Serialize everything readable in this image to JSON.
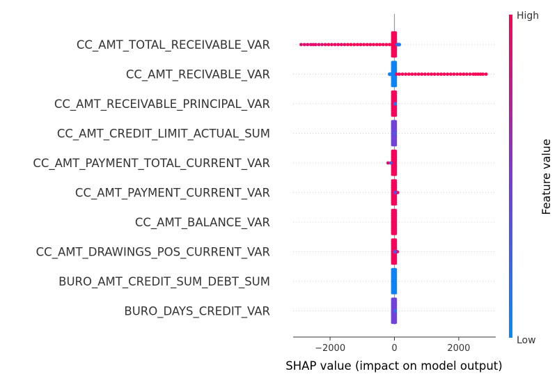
{
  "chart_data": {
    "type": "scatter",
    "subtype": "shap-beeswarm",
    "title": "",
    "xlabel": "SHAP value (impact on model output)",
    "xlim": [
      -3150,
      3150
    ],
    "xticks": [
      -2000,
      0,
      2000
    ],
    "xtick_labels": [
      "−2000",
      "0",
      "2000"
    ],
    "zero_line": 0,
    "colorbar": {
      "title": "Feature value",
      "high_label": "High",
      "low_label": "Low",
      "low_color": "#008bfb",
      "mid_color": "#7c3ad6",
      "high_color": "#ff0052"
    },
    "features": [
      {
        "name": "CC_AMT_TOTAL_RECEIVABLE_VAR",
        "tail": [
          [
            -2900,
            0.9
          ],
          [
            -2800,
            0.9
          ],
          [
            -2700,
            0.9
          ],
          [
            -2600,
            0.9
          ],
          [
            -2450,
            0.9
          ],
          [
            -2350,
            0.9
          ],
          [
            -2250,
            0.9
          ],
          [
            -2150,
            0.9
          ],
          [
            -2050,
            0.95
          ],
          [
            -1950,
            0.95
          ],
          [
            -1850,
            0.95
          ],
          [
            -1750,
            0.95
          ],
          [
            -1650,
            0.95
          ],
          [
            -1550,
            0.95
          ],
          [
            -1450,
            1.0
          ],
          [
            -1350,
            1.0
          ],
          [
            -1250,
            1.0
          ],
          [
            -1150,
            1.0
          ],
          [
            -1050,
            1.0
          ],
          [
            -950,
            1.0
          ],
          [
            -850,
            1.0
          ],
          [
            -750,
            1.0
          ],
          [
            -650,
            1.0
          ],
          [
            -550,
            1.0
          ],
          [
            -450,
            1.0
          ],
          [
            -350,
            1.0
          ],
          [
            -250,
            1.0
          ],
          [
            -150,
            1.0
          ],
          [
            -60,
            1.0
          ]
        ],
        "core": [
          -60,
          60
        ],
        "extras": [
          [
            150,
            0.1
          ],
          [
            120,
            0.1
          ],
          [
            90,
            0.15
          ]
        ]
      },
      {
        "name": "CC_AMT_RECIVABLE_VAR",
        "tail": [
          [
            2850,
            1.0
          ],
          [
            2750,
            1.0
          ],
          [
            2600,
            1.0
          ],
          [
            2450,
            1.0
          ],
          [
            2350,
            1.0
          ],
          [
            2250,
            1.0
          ],
          [
            2150,
            1.0
          ],
          [
            2050,
            1.0
          ],
          [
            1950,
            1.0
          ],
          [
            1850,
            1.0
          ],
          [
            1750,
            1.0
          ],
          [
            1650,
            1.0
          ],
          [
            1550,
            1.0
          ],
          [
            1450,
            1.0
          ],
          [
            1350,
            1.0
          ],
          [
            1250,
            1.0
          ],
          [
            1150,
            1.0
          ],
          [
            1050,
            1.0
          ],
          [
            950,
            1.0
          ],
          [
            850,
            1.0
          ],
          [
            750,
            1.0
          ],
          [
            650,
            1.0
          ],
          [
            550,
            1.0
          ],
          [
            450,
            1.0
          ],
          [
            350,
            1.0
          ],
          [
            250,
            1.0
          ],
          [
            150,
            1.0
          ],
          [
            60,
            1.0
          ]
        ],
        "core": [
          -60,
          60
        ],
        "extras": [
          [
            -150,
            0.05
          ],
          [
            -120,
            0.05
          ]
        ]
      },
      {
        "name": "CC_AMT_RECEIVABLE_PRINCIPAL_VAR",
        "tail": [],
        "core": [
          -60,
          60
        ],
        "extras": [
          [
            20,
            0.15
          ]
        ]
      },
      {
        "name": "CC_AMT_CREDIT_LIMIT_ACTUAL_SUM",
        "tail": [],
        "core": [
          -60,
          60
        ],
        "extras": [
          [
            10,
            0.3
          ],
          [
            -10,
            0.35
          ]
        ]
      },
      {
        "name": "CC_AMT_PAYMENT_TOTAL_CURRENT_VAR",
        "tail": [
          [
            -200,
            0.95
          ],
          [
            -120,
            0.25
          ]
        ],
        "core": [
          -60,
          60
        ],
        "extras": []
      },
      {
        "name": "CC_AMT_PAYMENT_CURRENT_VAR",
        "tail": [
          [
            100,
            0.9
          ]
        ],
        "core": [
          -60,
          60
        ],
        "extras": [
          [
            20,
            0.4
          ]
        ]
      },
      {
        "name": "CC_AMT_BALANCE_VAR",
        "tail": [],
        "core": [
          -60,
          60
        ],
        "extras": []
      },
      {
        "name": "CC_AMT_DRAWINGS_POS_CURRENT_VAR",
        "tail": [
          [
            90,
            0.9
          ]
        ],
        "core": [
          -60,
          60
        ],
        "extras": [
          [
            10,
            0.35
          ]
        ]
      },
      {
        "name": "BURO_AMT_CREDIT_SUM_DEBT_SUM",
        "tail": [],
        "core": [
          -60,
          60
        ],
        "extras": []
      },
      {
        "name": "BURO_DAYS_CREDIT_VAR",
        "tail": [],
        "core": [
          -60,
          60
        ],
        "extras": [
          [
            20,
            0.2
          ]
        ]
      }
    ],
    "core_colors": [
      0.98,
      0.05,
      0.97,
      0.45,
      0.97,
      0.97,
      0.96,
      0.97,
      0.05,
      0.45
    ]
  }
}
